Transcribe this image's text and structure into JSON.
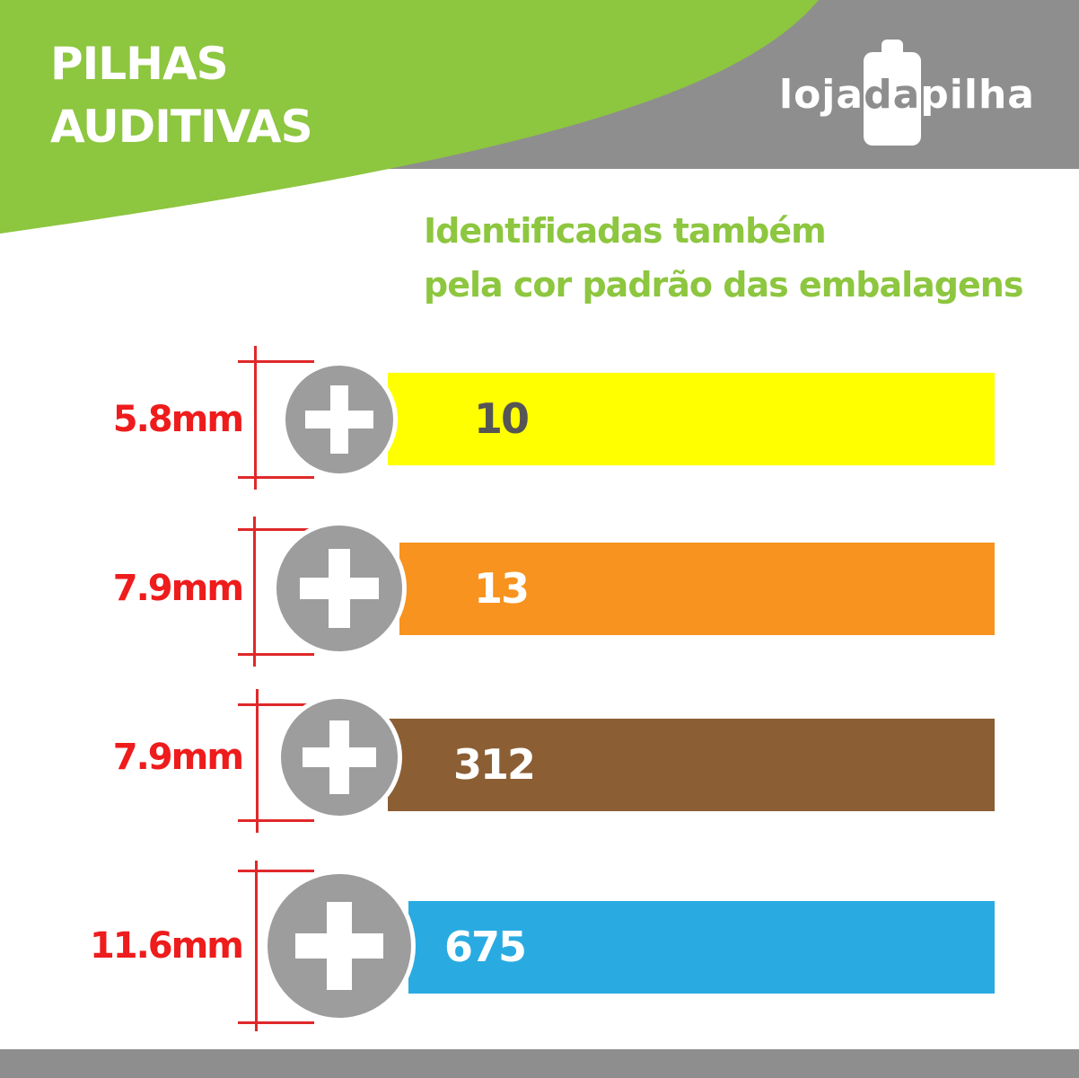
{
  "header": {
    "title_line1": "PILHAS",
    "title_line2": "AUDITIVAS",
    "logo": {
      "part1": "loja",
      "part2": "da",
      "part3": "pilha"
    },
    "subtitle_line1": "Identificadas também",
    "subtitle_line2": "pela cor padrão das embalagens"
  },
  "colors": {
    "green": "#8dc63f",
    "gray": "#8e8e8e",
    "red": "#ee1c1c"
  },
  "batteries": [
    {
      "size": "5.8mm",
      "model": "10",
      "color": "#ffff00",
      "text_color": "#555555",
      "icon": "plus-icon"
    },
    {
      "size": "7.9mm",
      "model": "13",
      "color": "#f7931e",
      "text_color": "#ffffff",
      "icon": "plus-icon"
    },
    {
      "size": "7.9mm",
      "model": "312",
      "color": "#8b5e34",
      "text_color": "#ffffff",
      "icon": "plus-icon"
    },
    {
      "size": "11.6mm",
      "model": "675",
      "color": "#29abe2",
      "text_color": "#ffffff",
      "icon": "plus-icon"
    }
  ]
}
